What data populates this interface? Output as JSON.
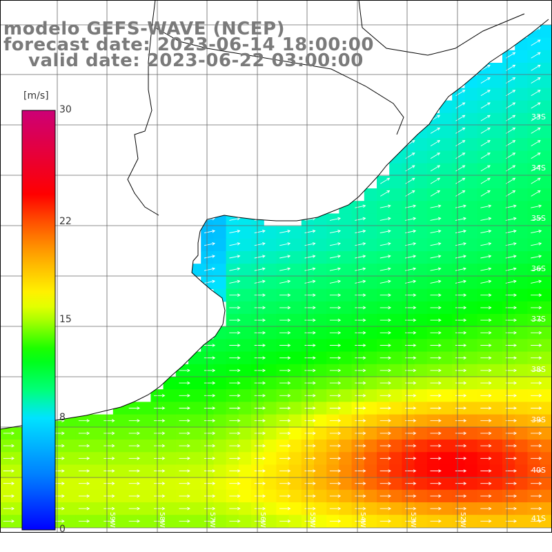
{
  "title": {
    "model": "modelo GEFS-WAVE (NCEP)",
    "forecast": "forecast date: 2023-06-14 18:00:00",
    "valid": "valid date: 2023-06-22 03:00:00"
  },
  "colorbar": {
    "unit": "[m/s]",
    "range": [
      0,
      30
    ],
    "ticks": [
      {
        "value": 30,
        "label": "30"
      },
      {
        "value": 22,
        "label": "22"
      },
      {
        "value": 15,
        "label": "15"
      },
      {
        "value": 8,
        "label": "8"
      },
      {
        "value": 0,
        "label": "0"
      }
    ],
    "colors": [
      "#0000ff",
      "#0077ff",
      "#00e5ff",
      "#00ff7f",
      "#00ff00",
      "#aaff00",
      "#ffff00",
      "#ffaa00",
      "#ff5500",
      "#ff0000",
      "#cc0077"
    ]
  },
  "lat_labels": [
    "33S",
    "34S",
    "35S",
    "36S",
    "37S",
    "38S",
    "39S",
    "40S",
    "41S"
  ],
  "lon_labels": [
    "59W",
    "58W",
    "57W",
    "56W",
    "55W",
    "54W",
    "53W",
    "52W"
  ],
  "wind_field_note_colors": {
    "land": "#ffffff",
    "coast": "#000000",
    "grid": "#555555",
    "arrow": "#ffffff"
  }
}
